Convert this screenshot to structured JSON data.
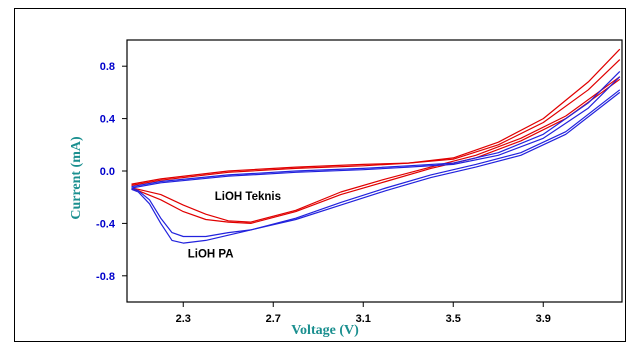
{
  "chart_data": {
    "type": "line",
    "title": "",
    "xlabel": "Voltage (V)",
    "ylabel": "Current (mA)",
    "xlim": [
      2.05,
      4.25
    ],
    "ylim": [
      -1.0,
      1.0
    ],
    "x_ticks": [
      2.3,
      2.7,
      3.1,
      3.5,
      3.9
    ],
    "x_tick_labels": [
      "2.3",
      "2.7",
      "3.1",
      "3.5",
      "3.9"
    ],
    "y_ticks": [
      0.8,
      0.4,
      0.0,
      -0.4,
      -0.8
    ],
    "y_tick_labels": [
      "0.8",
      "0.4",
      "0.0",
      "-0.4",
      "-0.8"
    ],
    "grid": false,
    "legend": "none",
    "colors": {
      "xlabel": "#1a8f8f",
      "ylabel": "#1a8f8f",
      "x_ticks": "#000000",
      "y_ticks": "#0000cc",
      "red_series": "#e00000",
      "blue_series": "#2222dd"
    },
    "annotations": [
      {
        "text": "LiOH Teknis",
        "x": 2.44,
        "y": -0.22
      },
      {
        "text": "LiOH PA",
        "x": 2.32,
        "y": -0.66
      }
    ],
    "series": [
      {
        "color": "#e00000",
        "points": [
          [
            2.07,
            -0.1
          ],
          [
            2.2,
            -0.06
          ],
          [
            2.5,
            0.0
          ],
          [
            2.8,
            0.03
          ],
          [
            3.1,
            0.05
          ],
          [
            3.3,
            0.06
          ],
          [
            3.5,
            0.1
          ],
          [
            3.7,
            0.22
          ],
          [
            3.9,
            0.4
          ],
          [
            4.1,
            0.68
          ],
          [
            4.24,
            0.93
          ]
        ]
      },
      {
        "color": "#e00000",
        "points": [
          [
            2.07,
            -0.11
          ],
          [
            2.2,
            -0.07
          ],
          [
            2.5,
            -0.01
          ],
          [
            2.8,
            0.02
          ],
          [
            3.1,
            0.04
          ],
          [
            3.3,
            0.06
          ],
          [
            3.5,
            0.09
          ],
          [
            3.7,
            0.2
          ],
          [
            3.9,
            0.37
          ],
          [
            4.1,
            0.62
          ],
          [
            4.24,
            0.85
          ]
        ]
      },
      {
        "color": "#e00000",
        "points": [
          [
            4.24,
            0.72
          ],
          [
            4.0,
            0.42
          ],
          [
            3.8,
            0.25
          ],
          [
            3.6,
            0.12
          ],
          [
            3.4,
            0.03
          ],
          [
            3.2,
            -0.06
          ],
          [
            3.0,
            -0.16
          ],
          [
            2.8,
            -0.3
          ],
          [
            2.6,
            -0.39
          ],
          [
            2.5,
            -0.38
          ],
          [
            2.4,
            -0.33
          ],
          [
            2.3,
            -0.26
          ],
          [
            2.2,
            -0.18
          ],
          [
            2.1,
            -0.14
          ],
          [
            2.07,
            -0.13
          ]
        ]
      },
      {
        "color": "#e00000",
        "points": [
          [
            4.24,
            0.7
          ],
          [
            4.0,
            0.4
          ],
          [
            3.8,
            0.23
          ],
          [
            3.6,
            0.1
          ],
          [
            3.4,
            0.02
          ],
          [
            3.2,
            -0.08
          ],
          [
            3.0,
            -0.18
          ],
          [
            2.8,
            -0.31
          ],
          [
            2.6,
            -0.4
          ],
          [
            2.5,
            -0.39
          ],
          [
            2.4,
            -0.37
          ],
          [
            2.3,
            -0.31
          ],
          [
            2.2,
            -0.22
          ],
          [
            2.1,
            -0.15
          ],
          [
            2.07,
            -0.14
          ]
        ]
      },
      {
        "color": "#2222dd",
        "points": [
          [
            2.07,
            -0.12
          ],
          [
            2.2,
            -0.08
          ],
          [
            2.5,
            -0.03
          ],
          [
            2.8,
            0.0
          ],
          [
            3.1,
            0.02
          ],
          [
            3.3,
            0.04
          ],
          [
            3.5,
            0.06
          ],
          [
            3.7,
            0.14
          ],
          [
            3.9,
            0.28
          ],
          [
            4.1,
            0.52
          ],
          [
            4.24,
            0.76
          ]
        ]
      },
      {
        "color": "#2222dd",
        "points": [
          [
            2.07,
            -0.13
          ],
          [
            2.2,
            -0.09
          ],
          [
            2.5,
            -0.04
          ],
          [
            2.8,
            -0.01
          ],
          [
            3.1,
            0.01
          ],
          [
            3.3,
            0.03
          ],
          [
            3.5,
            0.05
          ],
          [
            3.7,
            0.12
          ],
          [
            3.9,
            0.25
          ],
          [
            4.1,
            0.48
          ],
          [
            4.24,
            0.72
          ]
        ]
      },
      {
        "color": "#2222dd",
        "points": [
          [
            4.24,
            0.62
          ],
          [
            4.0,
            0.3
          ],
          [
            3.8,
            0.14
          ],
          [
            3.6,
            0.05
          ],
          [
            3.4,
            -0.03
          ],
          [
            3.2,
            -0.13
          ],
          [
            3.0,
            -0.24
          ],
          [
            2.8,
            -0.36
          ],
          [
            2.6,
            -0.45
          ],
          [
            2.5,
            -0.49
          ],
          [
            2.4,
            -0.53
          ],
          [
            2.3,
            -0.55
          ],
          [
            2.25,
            -0.53
          ],
          [
            2.2,
            -0.4
          ],
          [
            2.15,
            -0.25
          ],
          [
            2.1,
            -0.16
          ],
          [
            2.07,
            -0.14
          ]
        ]
      },
      {
        "color": "#2222dd",
        "points": [
          [
            4.24,
            0.6
          ],
          [
            4.0,
            0.28
          ],
          [
            3.8,
            0.12
          ],
          [
            3.6,
            0.03
          ],
          [
            3.4,
            -0.05
          ],
          [
            3.2,
            -0.15
          ],
          [
            3.0,
            -0.26
          ],
          [
            2.8,
            -0.37
          ],
          [
            2.6,
            -0.45
          ],
          [
            2.5,
            -0.47
          ],
          [
            2.4,
            -0.5
          ],
          [
            2.3,
            -0.5
          ],
          [
            2.25,
            -0.47
          ],
          [
            2.2,
            -0.36
          ],
          [
            2.15,
            -0.22
          ],
          [
            2.1,
            -0.15
          ],
          [
            2.07,
            -0.13
          ]
        ]
      }
    ]
  }
}
